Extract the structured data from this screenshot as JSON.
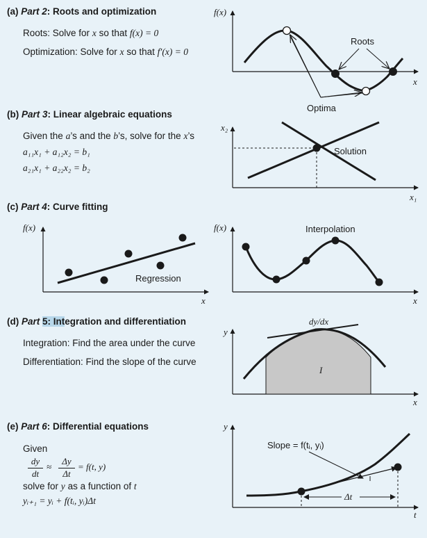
{
  "a": {
    "title_prefix": "(a) ",
    "title_part": "Part 2",
    "title_rest": ": Roots and optimization",
    "roots_text": "Roots: Solve for",
    "roots_var": "x",
    "roots_mid": "so that",
    "roots_eq": "f(x) = 0",
    "opt_text": "Optimization: Solve for",
    "opt_var": "x",
    "opt_mid": "so that",
    "opt_eq": "f′(x) = 0",
    "ylabel": "f(x)",
    "xlabel": "x",
    "roots_label": "Roots",
    "optima_label": "Optima"
  },
  "b": {
    "title_prefix": "(b) ",
    "title_part": "Part 3",
    "title_rest": ": Linear algebraic equations",
    "given": "Given the",
    "a_var": "a",
    "s1": "’s and the",
    "b_var": "b",
    "s2": "’s, solve for the",
    "x_var": "x",
    "s3": "’s",
    "eq1": "a₁₁x₁ + a₁₂x₂ = b₁",
    "eq2": "a₂₁x₁ + a₂₂x₂ = b₂",
    "ylabel": "x₂",
    "xlabel": "x₁",
    "solution_label": "Solution"
  },
  "c": {
    "title_prefix": "(c) ",
    "title_part": "Part 4",
    "title_rest": ": Curve fitting",
    "left_ylabel": "f(x)",
    "left_xlabel": "x",
    "regression_label": "Regression",
    "right_ylabel": "f(x)",
    "right_xlabel": "x",
    "interpolation_label": "Interpolation"
  },
  "d": {
    "title_prefix": "(d) ",
    "title_part": "Part ",
    "title_hl": "5: Int",
    "title_rest": "egration and differentiation",
    "integration": "Integration: Find the area under the curve",
    "differentiation": "Differentiation: Find the slope of the curve",
    "ylabel": "y",
    "xlabel": "x",
    "deriv_label": "dy/dx",
    "integral_label": "I"
  },
  "e": {
    "title_prefix": "(e) ",
    "title_part": "Part 6",
    "title_rest": ": Differential equations",
    "given": "Given",
    "dy": "dy",
    "dt": "dt",
    "approx": "≈",
    "Dy": "Δy",
    "Dt": "Δt",
    "rhs": "= f(t, y)",
    "solve_text": "solve for",
    "solve_var": "y",
    "solve_mid": "as a function of",
    "solve_t": "t",
    "update": "yᵢ₊₁ = yᵢ + f(tᵢ, yᵢ)Δt",
    "ylabel": "y",
    "xlabel": "t",
    "slope_label": "Slope = f(tᵢ, yᵢ)",
    "dt_label": "Δt"
  },
  "colors": {
    "background": "#e8f2f8",
    "highlight": "#b7d7ea",
    "area_fill": "#c8c8c8"
  }
}
